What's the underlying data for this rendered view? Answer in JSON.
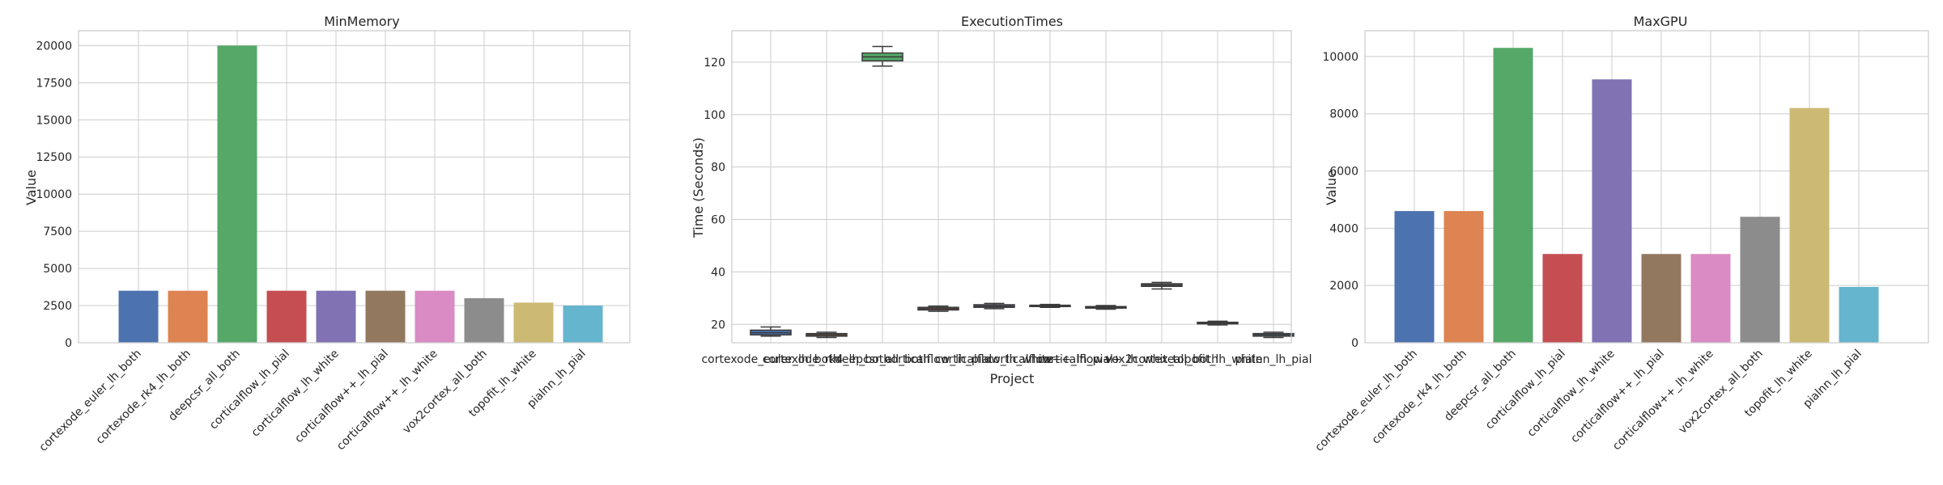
{
  "chart_data": [
    {
      "type": "bar",
      "title": "MinMemory",
      "xlabel": "",
      "ylabel": "Value",
      "ylim": [
        0,
        21000
      ],
      "yticks": [
        0,
        2500,
        5000,
        7500,
        10000,
        12500,
        15000,
        17500,
        20000
      ],
      "grid": true,
      "categories": [
        "cortexode_euler_lh_both",
        "cortexode_rk4_lh_both",
        "deepcsr_all_both",
        "corticalflow_lh_pial",
        "corticalflow_lh_white",
        "corticalflow++_lh_pial",
        "corticalflow++_lh_white",
        "vox2cortex_all_both",
        "topofit_lh_white",
        "pialnn_lh_pial"
      ],
      "values": [
        3500,
        3500,
        20000,
        3500,
        3500,
        3500,
        3500,
        3000,
        2700,
        2500
      ],
      "colors": [
        "#4c72b0",
        "#dd8452",
        "#55a868",
        "#c44e52",
        "#8172b3",
        "#937860",
        "#da8bc3",
        "#8c8c8c",
        "#ccb974",
        "#64b5cd"
      ]
    },
    {
      "type": "box",
      "title": "ExecutionTimes",
      "xlabel": "Project",
      "ylabel": "Time (Seconds)",
      "ylim": [
        13,
        132
      ],
      "yticks": [
        20,
        40,
        60,
        80,
        100,
        120
      ],
      "grid": true,
      "categories": [
        "cortexode_euler_lh_both",
        "cortexode_rk4_lh_both",
        "deepcsr_all_both",
        "corticalflow_lh_pial",
        "corticalflow_lh_white",
        "corticalflow++_lh_pial",
        "corticalflow++_lh_white",
        "vox2cortex_all_both",
        "topofit_lh_white",
        "pialnn_lh_pial"
      ],
      "boxes": [
        {
          "min": 15.5,
          "q1": 16.0,
          "median": 16.8,
          "q3": 17.8,
          "max": 19.0
        },
        {
          "min": 15.0,
          "q1": 15.5,
          "median": 16.0,
          "q3": 16.5,
          "max": 17.0
        },
        {
          "min": 118.5,
          "q1": 120.5,
          "median": 122.0,
          "q3": 123.5,
          "max": 126.0
        },
        {
          "min": 25.0,
          "q1": 25.5,
          "median": 26.0,
          "q3": 26.5,
          "max": 27.0
        },
        {
          "min": 26.0,
          "q1": 26.5,
          "median": 27.0,
          "q3": 27.5,
          "max": 28.0
        },
        {
          "min": 26.5,
          "q1": 26.8,
          "median": 27.0,
          "q3": 27.3,
          "max": 27.6
        },
        {
          "min": 25.8,
          "q1": 26.2,
          "median": 26.5,
          "q3": 26.8,
          "max": 27.2
        },
        {
          "min": 33.5,
          "q1": 34.5,
          "median": 35.0,
          "q3": 35.5,
          "max": 36.0
        },
        {
          "min": 19.8,
          "q1": 20.2,
          "median": 20.5,
          "q3": 20.8,
          "max": 21.2
        },
        {
          "min": 15.0,
          "q1": 15.5,
          "median": 16.0,
          "q3": 16.5,
          "max": 17.0
        }
      ],
      "colors": [
        "#4c72b0",
        "#dd8452",
        "#55a868",
        "#c44e52",
        "#8172b3",
        "#937860",
        "#da8bc3",
        "#8c8c8c",
        "#ccb974",
        "#64b5cd"
      ]
    },
    {
      "type": "bar",
      "title": "MaxGPU",
      "xlabel": "",
      "ylabel": "Value",
      "ylim": [
        0,
        10900
      ],
      "yticks": [
        0,
        2000,
        4000,
        6000,
        8000,
        10000
      ],
      "grid": true,
      "categories": [
        "cortexode_euler_lh_both",
        "cortexode_rk4_lh_both",
        "deepcsr_all_both",
        "corticalflow_lh_pial",
        "corticalflow_lh_white",
        "corticalflow++_lh_pial",
        "corticalflow++_lh_white",
        "vox2cortex_all_both",
        "topofit_lh_white",
        "pialnn_lh_pial"
      ],
      "values": [
        4600,
        4600,
        10300,
        3100,
        9200,
        3100,
        3100,
        4400,
        8200,
        1950
      ],
      "colors": [
        "#4c72b0",
        "#dd8452",
        "#55a868",
        "#c44e52",
        "#8172b3",
        "#937860",
        "#da8bc3",
        "#8c8c8c",
        "#ccb974",
        "#64b5cd"
      ]
    }
  ]
}
